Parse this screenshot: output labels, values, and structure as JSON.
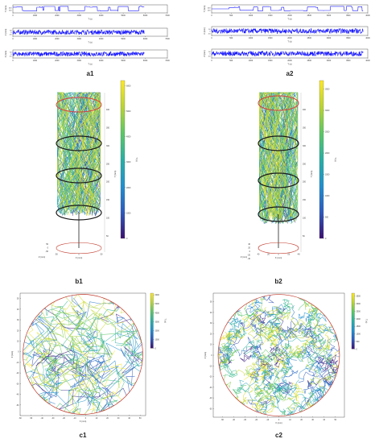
{
  "figure": {
    "colors": {
      "trace": "#1a1aff",
      "axis": "#333333",
      "cylinder_ring": "#1a1a1a",
      "top_ring": "#d94040",
      "base_ring": "#c0392b",
      "colormap": [
        "#3b0f70",
        "#2c5bbf",
        "#1f8fcf",
        "#27b0a4",
        "#5cc863",
        "#b8d432",
        "#fde725"
      ]
    },
    "panel_labels": [
      "a1",
      "a2",
      "b1",
      "b2",
      "c1",
      "c2"
    ]
  },
  "chart_data": [
    {
      "id": "a1",
      "type": "line",
      "panel_label": "a1",
      "xlabel": "T (s)",
      "xlim": [
        0,
        7000
      ],
      "xticks": [
        "0",
        "1000",
        "2000",
        "3000",
        "4000",
        "5000",
        "6000",
        "7000"
      ],
      "series": [
        {
          "ylabel": "Y (mm)",
          "yticks": [
            "200",
            "400"
          ]
        },
        {
          "ylabel": "X (mm)",
          "yticks": [
            "-50",
            "0",
            "50"
          ]
        },
        {
          "ylabel": "Z (mm)",
          "yticks": [
            "-50",
            "0",
            "50"
          ]
        }
      ]
    },
    {
      "id": "a2",
      "type": "line",
      "panel_label": "a2",
      "xlabel": "T (s)",
      "xlim": [
        0,
        4000
      ],
      "xticks": [
        "0",
        "500",
        "1000",
        "1500",
        "2000",
        "2500",
        "3000",
        "3500",
        "4000"
      ],
      "series": [
        {
          "ylabel": "Y (mm)",
          "yticks": [
            "200",
            "400"
          ]
        },
        {
          "ylabel": "X (mm)",
          "yticks": [
            "-50",
            "0",
            "50"
          ]
        },
        {
          "ylabel": "Z (mm)",
          "yticks": [
            "-50",
            "0",
            "50"
          ]
        }
      ]
    },
    {
      "id": "b1",
      "type": "scatter",
      "panel_label": "b1",
      "ylabel": "Y (mm)",
      "yticks": [
        "50",
        "100",
        "150",
        "200",
        "250",
        "300",
        "350",
        "400"
      ],
      "xlabel": "X (mm)",
      "xticks": [
        "-50",
        "0",
        "50"
      ],
      "zlabel": "Z (mm)",
      "zticks": [
        "50",
        "0",
        "-50"
      ],
      "colorbar": {
        "label": "T (s)",
        "ticks": [
          "0",
          "1000",
          "2000",
          "3000",
          "4000",
          "5000",
          "6000"
        ],
        "range": [
          0,
          6200
        ]
      }
    },
    {
      "id": "b2",
      "type": "scatter",
      "panel_label": "b2",
      "ylabel": "Y (mm)",
      "yticks": [
        "50",
        "100",
        "150",
        "200",
        "250",
        "300",
        "350",
        "400"
      ],
      "xlabel": "X (mm)",
      "xticks": [
        "40",
        "20",
        "0",
        "-20",
        "-40"
      ],
      "zlabel": "Z (mm)",
      "zticks": [
        "40",
        "20",
        "0",
        "-20",
        "-40"
      ],
      "colorbar": {
        "label": "T (s)",
        "ticks": [
          "0",
          "500",
          "1000",
          "1500",
          "2000",
          "2500",
          "3000",
          "3500"
        ],
        "range": [
          0,
          3700
        ]
      }
    },
    {
      "id": "c1",
      "type": "scatter",
      "panel_label": "c1",
      "xlabel": "X (mm)",
      "ylabel": "Z (mm)",
      "xticks": [
        "-60",
        "-50",
        "-40",
        "-30",
        "-20",
        "-10",
        "0",
        "10",
        "20",
        "30",
        "40",
        "50"
      ],
      "yticks": [
        "-50",
        "-40",
        "-30",
        "-20",
        "-10",
        "0",
        "10",
        "20",
        "30",
        "40",
        "50"
      ],
      "xlim": [
        -60,
        55
      ],
      "ylim": [
        -60,
        55
      ],
      "colorbar": {
        "label": "T (s)",
        "ticks": [
          "0",
          "1000",
          "2000",
          "3000",
          "4000",
          "5000",
          "6000"
        ],
        "range": [
          0,
          6200
        ]
      }
    },
    {
      "id": "c2",
      "type": "scatter",
      "panel_label": "c2",
      "xlabel": "X (mm)",
      "ylabel": "Z (mm)",
      "xticks": [
        "-50",
        "-40",
        "-30",
        "-20",
        "-10",
        "0",
        "10",
        "20",
        "30",
        "40",
        "50"
      ],
      "yticks": [
        "-50",
        "-40",
        "-30",
        "-20",
        "-10",
        "0",
        "10",
        "20",
        "30",
        "40",
        "50"
      ],
      "xlim": [
        -58,
        58
      ],
      "ylim": [
        -58,
        58
      ],
      "colorbar": {
        "label": "T (s)",
        "ticks": [
          "0",
          "500",
          "1000",
          "1500",
          "2000",
          "2500",
          "3000",
          "3500"
        ],
        "range": [
          0,
          3700
        ]
      }
    }
  ]
}
